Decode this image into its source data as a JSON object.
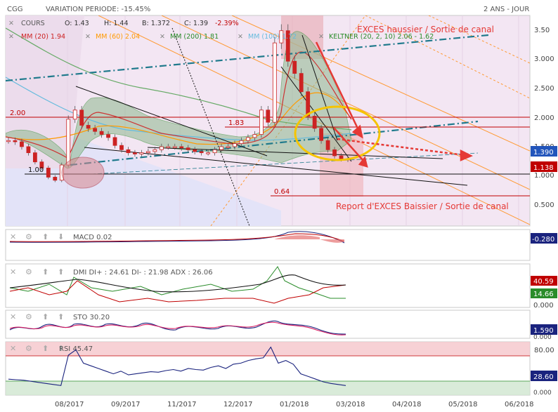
{
  "header": {
    "ticker": "CGG",
    "variation_label": "VARIATION PERIODE",
    "variation_value": ": -15.45%",
    "period": "2 ANS - JOUR"
  },
  "legend": {
    "series_label": "COURS",
    "open": "O: 1.43",
    "high": "H: 1.44",
    "low": "B: 1.372",
    "close": "C: 1.39",
    "change": "-2.39%",
    "mm20": "MM (20) 1.94",
    "mm60": "MM (60) 2.04",
    "mm200": "MM (200) 1.81",
    "mm100": "MM (100) 1.72",
    "keltner": "KELTNER (20, 2, 10) 2.06 - 1.62"
  },
  "annotations": {
    "exces_haussier": "EXCES haussier / Sortie de canal",
    "exces_baissier": "Report d'EXCES Baissier / Sortie de canal",
    "level_200": "2.00",
    "level_183": "1.83",
    "level_100": "1.00",
    "level_064": "0.64"
  },
  "colors": {
    "candle": "#cc2222",
    "mm20": "#cc3333",
    "mm60": "#ff9a00",
    "mm200": "#2a8c2a",
    "mm100": "#66bbdd",
    "keltner": "#2a8c2a",
    "bollinger_fill": "#8fb88f",
    "channel": "#ff9a33",
    "trend": "#1f7a8c",
    "annotation": "#e53935",
    "circle": "#f5c400"
  },
  "chart_data": {
    "type": "candlestick",
    "x_tick_labels": [
      "08/2017",
      "09/2017",
      "11/2017",
      "12/2017",
      "01/2018",
      "03/2018",
      "04/2018",
      "05/2018",
      "06/2018"
    ],
    "y_tick_labels": [
      "0.500",
      "1.000",
      "1.500",
      "2.000",
      "2.500",
      "3.000",
      "3.50"
    ],
    "ylim": [
      0.3,
      3.75
    ],
    "last_price": "1.390",
    "last_price_color": "#2255bb",
    "ref_price": "1.138",
    "ref_price_color": "#c00000",
    "price_close_series": [
      1.7,
      1.68,
      1.6,
      1.5,
      1.35,
      1.25,
      1.1,
      1.05,
      1.3,
      2.05,
      2.2,
      1.95,
      1.9,
      1.85,
      1.8,
      1.75,
      1.62,
      1.55,
      1.5,
      1.48,
      1.5,
      1.52,
      1.55,
      1.6,
      1.6,
      1.6,
      1.58,
      1.55,
      1.52,
      1.5,
      1.5,
      1.55,
      1.6,
      1.6,
      1.65,
      1.7,
      1.75,
      1.8,
      2.2,
      2.0,
      3.3,
      3.5,
      3.0,
      2.8,
      2.5,
      2.1,
      1.9,
      1.7,
      1.55,
      1.45,
      1.4,
      1.39
    ],
    "indicators": [
      {
        "name": "MACD",
        "label": "MACD",
        "value": "0.02",
        "last_value": "-0.280",
        "last_color": "#1a237e"
      },
      {
        "name": "DMI",
        "label": "DMI DI+ : 24.61 DI- : 21.98 ADX : 26.06",
        "scale_max": "40.59",
        "scale_mid": "14.66",
        "scale_min": "0.000"
      },
      {
        "name": "STO",
        "label": "STO",
        "value": "30.20",
        "last_value": "1.590",
        "last_color": "#1a237e",
        "scale_min": "0.000"
      },
      {
        "name": "RSI",
        "label": "RSI",
        "value": "45.47",
        "scale_top": "80.00",
        "scale_mid": "28.60",
        "scale_min": "0.000",
        "values": [
          30,
          29,
          28,
          26,
          24,
          22,
          20,
          18,
          75,
          85,
          60,
          55,
          50,
          45,
          40,
          45,
          38,
          40,
          42,
          44,
          43,
          46,
          48,
          45,
          50,
          48,
          47,
          52,
          55,
          50,
          58,
          60,
          65,
          68,
          70,
          90,
          60,
          65,
          58,
          40,
          35,
          30,
          25,
          22,
          20,
          18
        ]
      }
    ]
  },
  "panel_icons": {
    "close": "close-icon",
    "settings": "gear-icon",
    "up": "arrow-up-icon",
    "down": "arrow-down-icon"
  }
}
